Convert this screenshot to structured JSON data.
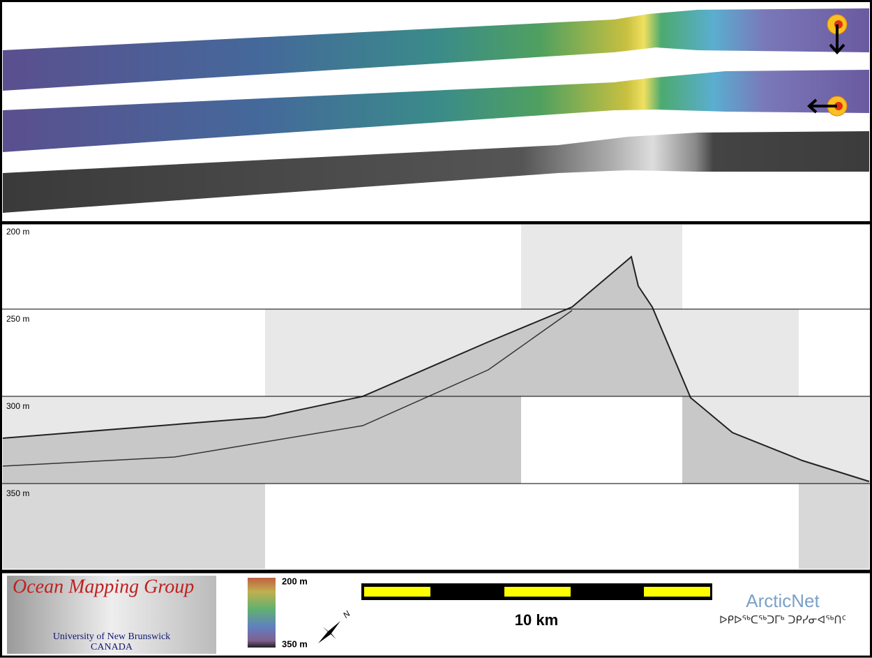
{
  "profile": {
    "depth_labels": [
      "200 m",
      "250 m",
      "300 m",
      "350 m"
    ]
  },
  "footer": {
    "logo_title": "Ocean Mapping Group",
    "logo_university": "University of New Brunswick",
    "logo_country": "CANADA",
    "colorbar_top": "200 m",
    "colorbar_bottom": "350 m",
    "north": "N",
    "scale": "10 km",
    "partner": "ArcticNet",
    "partner_syllabics": "ᐅᑭᐅᖅᑕᖅᑐᒥᒃ ᑐᑭᓯᓂᐊᖅᑎᑦ"
  }
}
